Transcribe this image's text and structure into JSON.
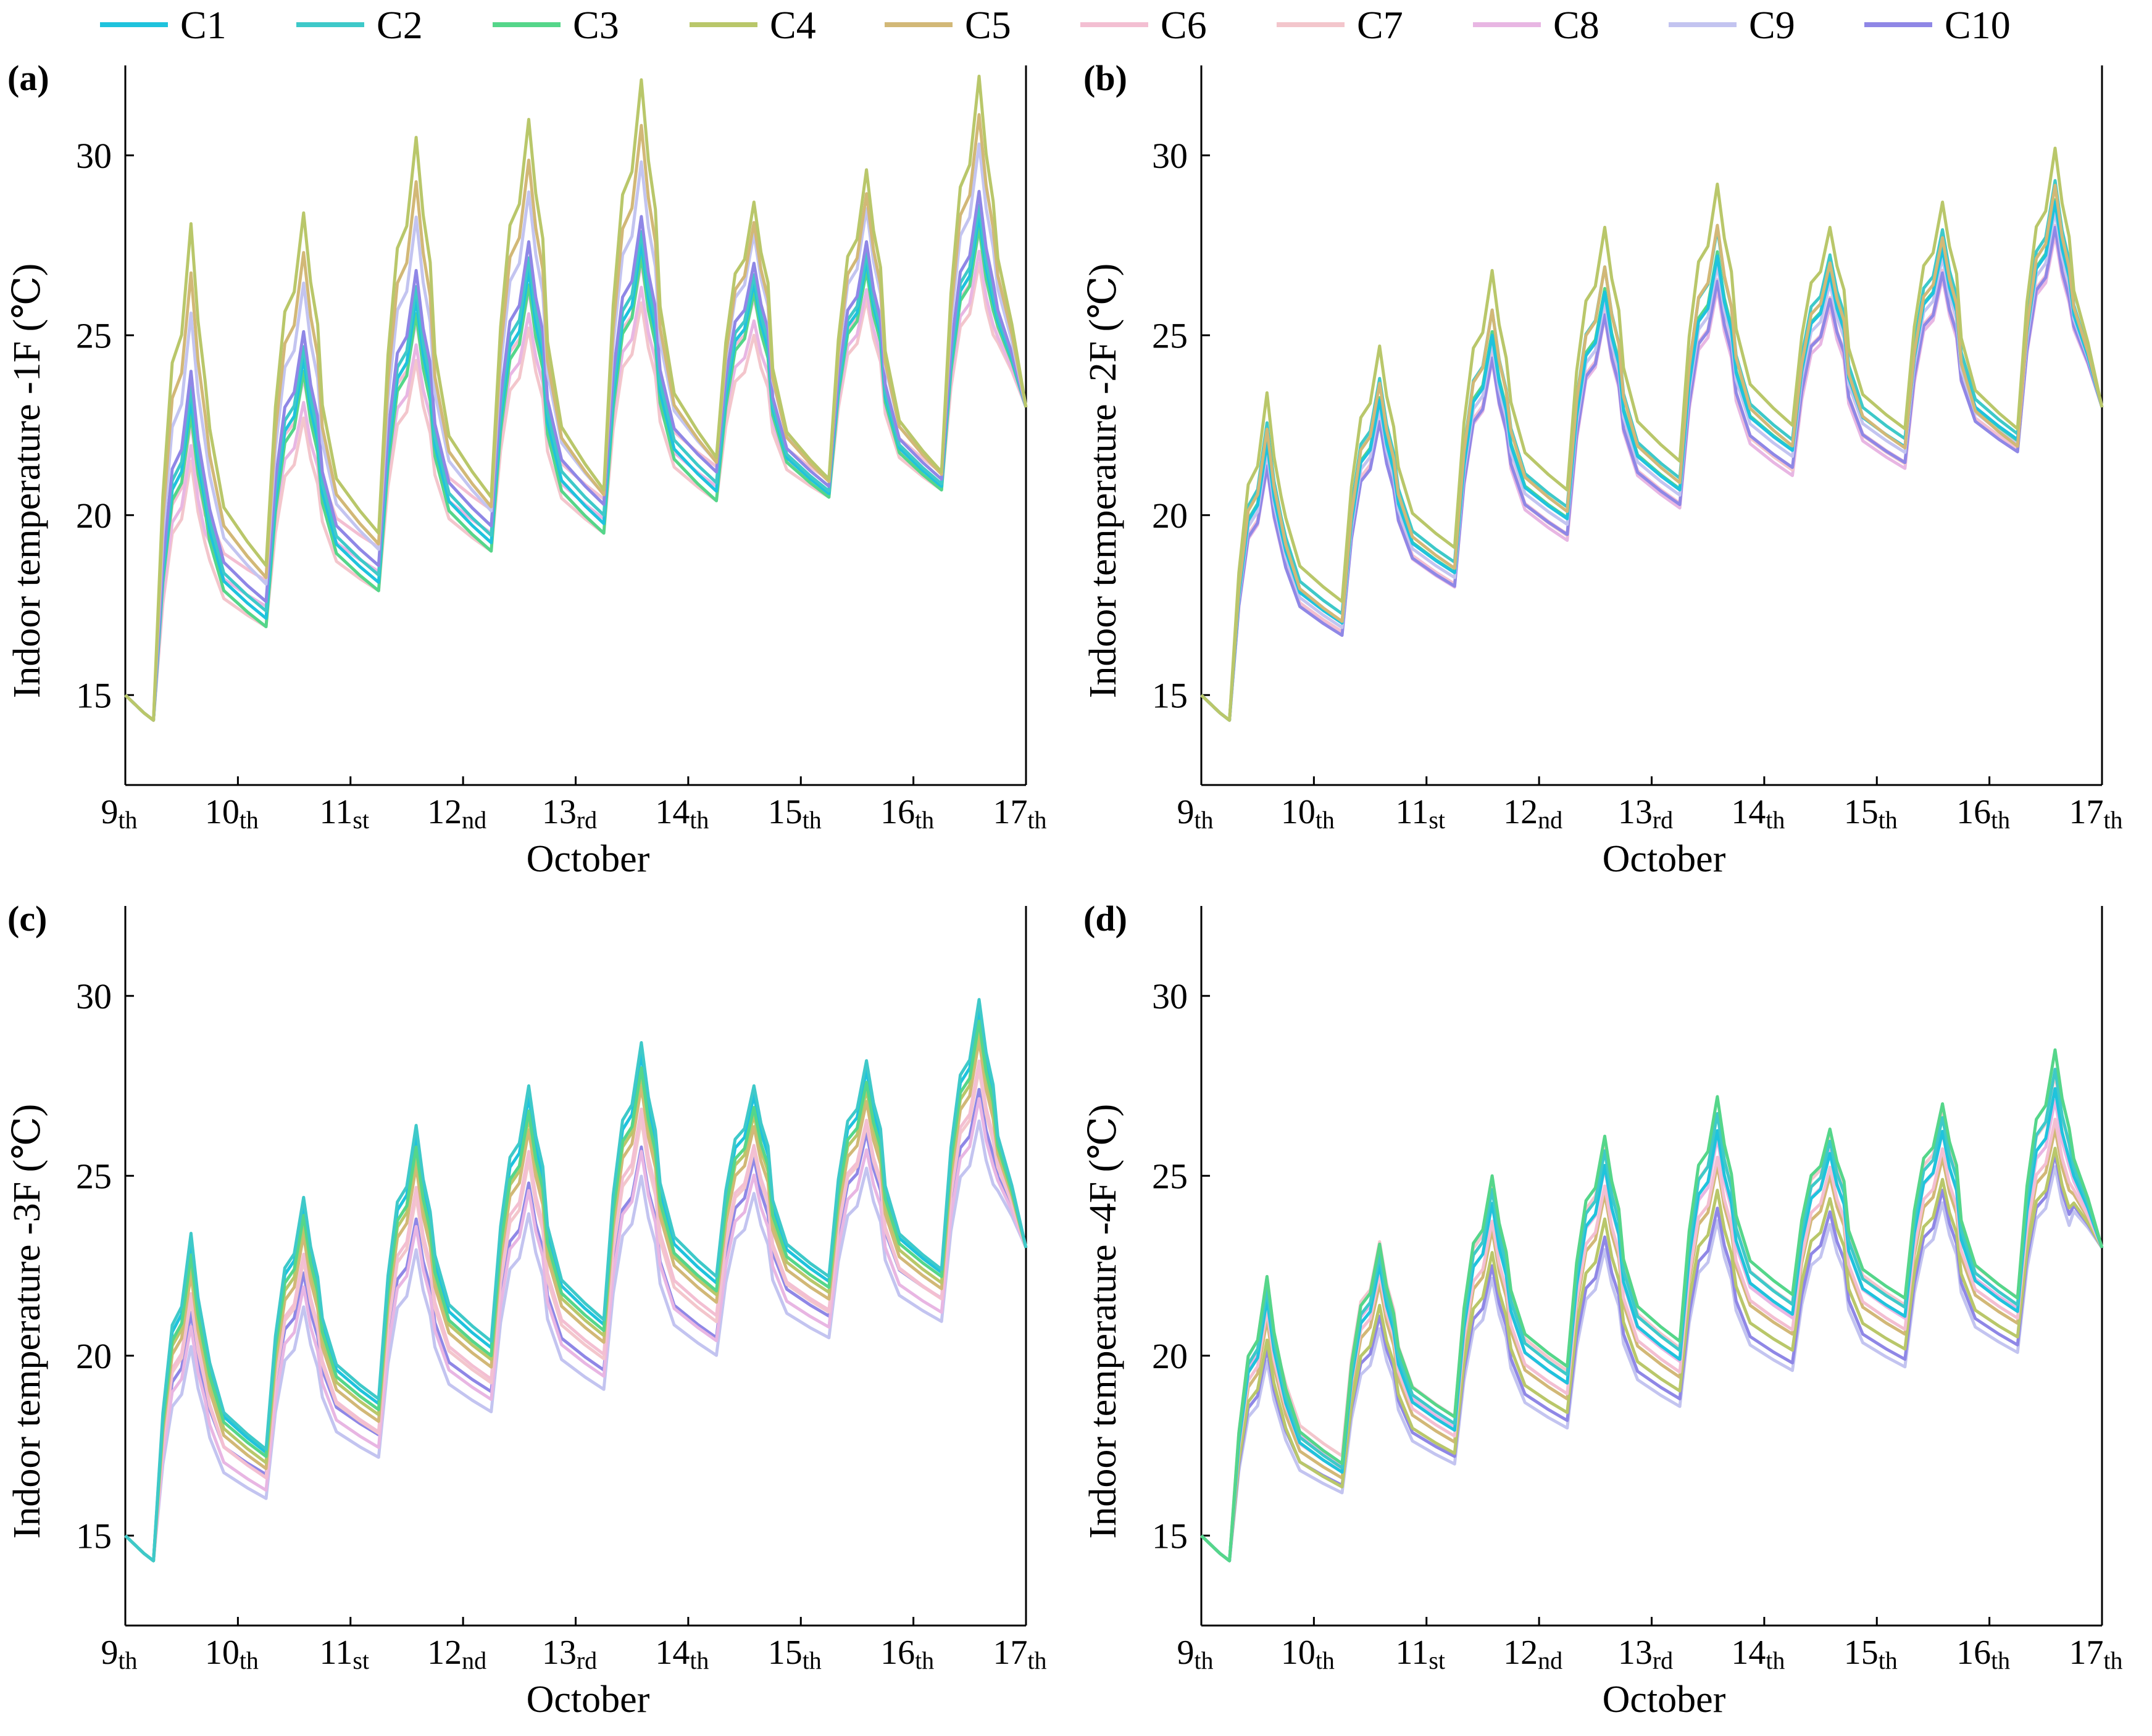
{
  "legend": [
    {
      "name": "C1",
      "color": "#1fc3dd"
    },
    {
      "name": "C2",
      "color": "#3ec9c9"
    },
    {
      "name": "C3",
      "color": "#55d68a"
    },
    {
      "name": "C4",
      "color": "#b9c76a"
    },
    {
      "name": "C5",
      "color": "#d2b877"
    },
    {
      "name": "C6",
      "color": "#f3bfd2"
    },
    {
      "name": "C7",
      "color": "#f3c6cc"
    },
    {
      "name": "C8",
      "color": "#e8b6e3"
    },
    {
      "name": "C9",
      "color": "#c3c4f0"
    },
    {
      "name": "C10",
      "color": "#8f87e6"
    }
  ],
  "chart_data": [
    {
      "type": "line",
      "label": "(a)",
      "ylabel": "Indoor temperature -1F (℃)",
      "xlabel": "October",
      "ylim": [
        12.5,
        32.5
      ],
      "yticks": [
        15,
        20,
        25,
        30
      ],
      "xticks": [
        {
          "day": "9",
          "suffix": "th"
        },
        {
          "day": "10",
          "suffix": "th"
        },
        {
          "day": "11",
          "suffix": "st"
        },
        {
          "day": "12",
          "suffix": "nd"
        },
        {
          "day": "13",
          "suffix": "rd"
        },
        {
          "day": "14",
          "suffix": "th"
        },
        {
          "day": "15",
          "suffix": "th"
        },
        {
          "day": "16",
          "suffix": "th"
        },
        {
          "day": "17",
          "suffix": "th"
        }
      ],
      "days": 8,
      "day_peaks": {
        "C4": [
          28.1,
          28.4,
          30.5,
          31.0,
          32.1,
          28.7,
          29.6,
          32.2
        ],
        "C10": [
          24.0,
          25.1,
          26.8,
          27.6,
          28.3,
          27.0,
          27.6,
          29.0
        ],
        "C3": [
          22.8,
          24.0,
          25.6,
          26.4,
          27.2,
          26.2,
          26.8,
          28.0
        ],
        "C7": [
          21.5,
          22.7,
          24.3,
          25.2,
          25.9,
          25.0,
          26.0,
          27.0
        ]
      },
      "day_lows": {
        "C4": [
          18.6,
          19.5,
          20.5,
          20.7,
          21.6,
          21.0,
          21.2
        ],
        "C10": [
          17.6,
          18.6,
          19.7,
          20.3,
          21.2,
          20.8,
          21.0
        ],
        "C7": [
          16.9,
          17.9,
          19.0,
          19.5,
          20.4,
          20.5,
          20.7
        ]
      },
      "series_order": [
        "C7",
        "C8",
        "C6",
        "C3",
        "C1",
        "C2",
        "C10",
        "C9",
        "C5",
        "C4"
      ],
      "offsets": {
        "C1": 0.0,
        "C2": -0.05,
        "C3": 0.0,
        "C4": 0.0,
        "C5": 0.0,
        "C6": 0.25,
        "C7": 0.0,
        "C8": 0.0,
        "C9": 0.25,
        "C10": 0.0
      }
    },
    {
      "type": "line",
      "label": "(b)",
      "ylabel": "Indoor temperature -2F (℃)",
      "xlabel": "October",
      "ylim": [
        12.5,
        32.5
      ],
      "yticks": [
        15,
        20,
        25,
        30
      ],
      "xticks": [
        {
          "day": "9",
          "suffix": "th"
        },
        {
          "day": "10",
          "suffix": "th"
        },
        {
          "day": "11",
          "suffix": "st"
        },
        {
          "day": "12",
          "suffix": "nd"
        },
        {
          "day": "13",
          "suffix": "rd"
        },
        {
          "day": "14",
          "suffix": "th"
        },
        {
          "day": "15",
          "suffix": "th"
        },
        {
          "day": "16",
          "suffix": "th"
        },
        {
          "day": "17",
          "suffix": "th"
        }
      ],
      "days": 8,
      "day_peaks": {
        "C4": [
          23.4,
          24.7,
          26.8,
          28.0,
          29.2,
          28.0,
          28.7,
          30.2
        ],
        "C1": [
          22.0,
          23.2,
          25.0,
          26.2,
          27.2,
          26.7,
          27.4,
          28.7
        ],
        "C8": [
          21.3,
          22.6,
          24.3,
          25.5,
          26.3,
          25.8,
          26.6,
          27.8
        ]
      },
      "day_lows": {
        "C4": [
          17.6,
          19.1,
          20.7,
          21.5,
          22.5,
          22.4,
          22.4
        ],
        "C1": [
          17.0,
          18.4,
          19.9,
          20.7,
          21.8,
          21.9,
          22.1
        ],
        "C8": [
          16.7,
          18.0,
          19.3,
          20.2,
          21.1,
          21.3,
          21.8
        ]
      },
      "series_order": [
        "C8",
        "C7",
        "C6",
        "C10",
        "C9",
        "C3",
        "C2",
        "C1",
        "C5",
        "C4"
      ],
      "offsets": {
        "C1": 0.0,
        "C2": 0.1,
        "C3": -0.1,
        "C4": 0.0,
        "C5": -0.7,
        "C6": -0.15,
        "C7": 0.0,
        "C8": 0.0,
        "C9": -0.15,
        "C10": -0.4
      }
    },
    {
      "type": "line",
      "label": "(c)",
      "ylabel": "Indoor temperature -3F (℃)",
      "xlabel": "October",
      "ylim": [
        12.5,
        32.5
      ],
      "yticks": [
        15,
        20,
        25,
        30
      ],
      "xticks": [
        {
          "day": "9",
          "suffix": "th"
        },
        {
          "day": "10",
          "suffix": "th"
        },
        {
          "day": "11",
          "suffix": "st"
        },
        {
          "day": "12",
          "suffix": "nd"
        },
        {
          "day": "13",
          "suffix": "rd"
        },
        {
          "day": "14",
          "suffix": "th"
        },
        {
          "day": "15",
          "suffix": "th"
        },
        {
          "day": "16",
          "suffix": "th"
        },
        {
          "day": "17",
          "suffix": "th"
        }
      ],
      "days": 8,
      "day_peaks": {
        "C2": [
          23.4,
          24.4,
          26.4,
          27.5,
          28.7,
          27.5,
          28.2,
          29.9
        ],
        "C3": [
          22.8,
          23.9,
          25.8,
          26.8,
          28.0,
          26.9,
          27.6,
          29.3
        ],
        "C10": [
          21.2,
          22.3,
          23.8,
          24.8,
          25.8,
          25.5,
          26.2,
          27.4
        ]
      },
      "day_lows": {
        "C2": [
          17.4,
          18.8,
          20.4,
          21.0,
          22.2,
          22.2,
          22.4
        ],
        "C3": [
          17.2,
          18.5,
          20.0,
          20.7,
          21.8,
          21.9,
          22.2
        ],
        "C10": [
          16.7,
          17.8,
          19.0,
          19.6,
          20.5,
          21.1,
          21.6
        ]
      },
      "series_order": [
        "C10",
        "C9",
        "C8",
        "C7",
        "C6",
        "C5",
        "C4",
        "C1",
        "C3",
        "C2"
      ],
      "offsets": {
        "C1": 0.0,
        "C2": 0.0,
        "C3": 0.0,
        "C4": -0.4,
        "C5": -0.6,
        "C6": -0.9,
        "C7": -0.7,
        "C8": -1.1,
        "C9": -1.3,
        "C10": 0.0
      }
    },
    {
      "type": "line",
      "label": "(d)",
      "ylabel": "Indoor temperature -4F (℃)",
      "xlabel": "October",
      "ylim": [
        12.5,
        32.5
      ],
      "yticks": [
        15,
        20,
        25,
        30
      ],
      "xticks": [
        {
          "day": "9",
          "suffix": "th"
        },
        {
          "day": "10",
          "suffix": "th"
        },
        {
          "day": "11",
          "suffix": "st"
        },
        {
          "day": "12",
          "suffix": "nd"
        },
        {
          "day": "13",
          "suffix": "rd"
        },
        {
          "day": "14",
          "suffix": "th"
        },
        {
          "day": "15",
          "suffix": "th"
        },
        {
          "day": "16",
          "suffix": "th"
        },
        {
          "day": "17",
          "suffix": "th"
        }
      ],
      "days": 8,
      "day_peaks": {
        "C3": [
          22.2,
          23.1,
          25.0,
          26.1,
          27.2,
          26.3,
          27.0,
          28.5
        ],
        "C5": [
          21.0,
          22.0,
          23.5,
          24.5,
          25.3,
          25.0,
          25.5,
          26.3
        ],
        "C10": [
          20.2,
          21.1,
          22.5,
          23.3,
          24.1,
          24.0,
          24.6,
          25.6
        ]
      },
      "day_lows": {
        "C3": [
          17.0,
          18.3,
          19.7,
          20.4,
          21.7,
          21.6,
          21.6
        ],
        "C5": [
          16.6,
          17.6,
          18.8,
          19.4,
          20.6,
          20.6,
          20.9
        ],
        "C10": [
          16.4,
          17.2,
          18.2,
          18.8,
          19.8,
          19.9,
          20.3
        ]
      },
      "series_order": [
        "C9",
        "C10",
        "C5",
        "C4",
        "C6",
        "C8",
        "C7",
        "C1",
        "C2",
        "C3"
      ],
      "offsets": {
        "C1": -0.1,
        "C2": -0.05,
        "C3": 0.0,
        "C4": -0.3,
        "C5": 0.0,
        "C6": 0.35,
        "C7": 0.8,
        "C8": 0.55,
        "C9": -0.35,
        "C10": 0.0
      }
    }
  ]
}
